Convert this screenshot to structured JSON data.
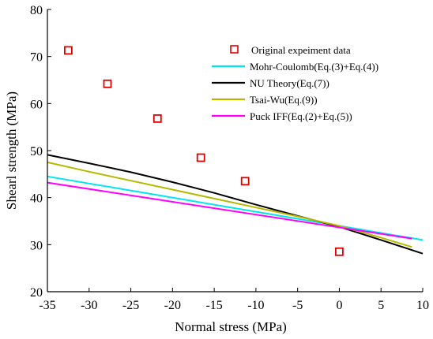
{
  "chart_data": {
    "type": "scatter",
    "title": "",
    "xlabel": "Normal stress (MPa)",
    "ylabel": "Shearl strength (MPa)",
    "xlim": [
      -35,
      10
    ],
    "ylim": [
      20,
      80
    ],
    "xticks": [
      -35,
      -30,
      -25,
      -20,
      -15,
      -10,
      -5,
      0,
      5,
      10
    ],
    "yticks": [
      20,
      30,
      40,
      50,
      60,
      70,
      80
    ],
    "grid": false,
    "legend_position": "top-right",
    "series": [
      {
        "name": "Original expeiment data",
        "kind": "marker",
        "color": "#e00000",
        "x": [
          -32.5,
          -27.8,
          -21.8,
          -16.6,
          -11.3,
          0
        ],
        "y": [
          71.3,
          64.2,
          56.8,
          48.5,
          43.5,
          28.5
        ]
      },
      {
        "name": "Mohr-Coulomb(Eq.(3)+Eq.(4))",
        "kind": "line",
        "color": "#00e5ee",
        "x": [
          -35,
          10
        ],
        "y": [
          44.5,
          31.0
        ]
      },
      {
        "name": "NU Theory(Eq.(7))",
        "kind": "line",
        "color": "#000000",
        "x": [
          -35,
          -30,
          -25,
          -20,
          -15,
          -10,
          -5,
          0,
          5,
          10
        ],
        "y": [
          49.1,
          47.3,
          45.4,
          43.3,
          41.0,
          38.5,
          36.1,
          33.8,
          31.0,
          28.1
        ]
      },
      {
        "name": "Tsai-Wu(Eq.(9))",
        "kind": "line",
        "color": "#b8b800",
        "x": [
          -35,
          -30,
          -25,
          -20,
          -15,
          -10,
          -5,
          0,
          5,
          8.7
        ],
        "y": [
          47.5,
          45.5,
          43.6,
          41.7,
          39.8,
          37.9,
          36.0,
          34.0,
          31.5,
          29.5
        ]
      },
      {
        "name": "Puck IFF(Eq.(2)+Eq.(5))",
        "kind": "line",
        "color": "#ff00ff",
        "x": [
          -35,
          8.7
        ],
        "y": [
          43.2,
          31.3
        ]
      }
    ]
  }
}
